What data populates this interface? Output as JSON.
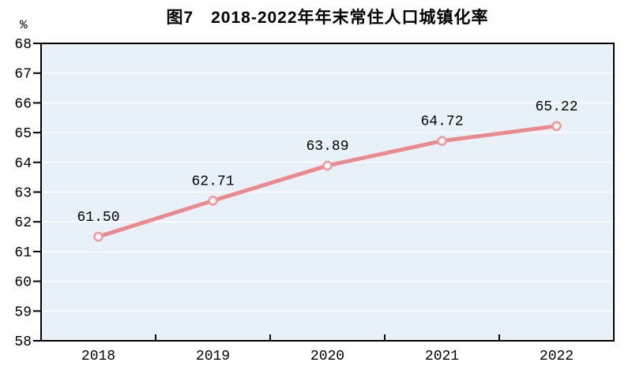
{
  "chart_data": {
    "type": "line",
    "title": "图7　2018-2022年年末常住人口城镇化率",
    "unit_label": "%",
    "categories": [
      "2018",
      "2019",
      "2020",
      "2021",
      "2022"
    ],
    "values": [
      61.5,
      62.71,
      63.89,
      64.72,
      65.22
    ],
    "data_labels": [
      "61.50",
      "62.71",
      "63.89",
      "64.72",
      "65.22"
    ],
    "xlabel": "",
    "ylabel": "%",
    "ylim": [
      58,
      68
    ],
    "ytick_step": 1,
    "ytick_labels": [
      "58",
      "59",
      "60",
      "61",
      "62",
      "63",
      "64",
      "65",
      "66",
      "67",
      "68"
    ],
    "grid": true,
    "legend_position": "none",
    "colors": {
      "line": "#ea8a8f",
      "marker_fill": "#fdf6f6",
      "marker_stroke": "#ec9aa0",
      "plot_background": "#e9f1f8",
      "grid_line": "#fafcfe",
      "border": "#000000",
      "text": "#000000",
      "page_background": "#ffffff"
    }
  }
}
